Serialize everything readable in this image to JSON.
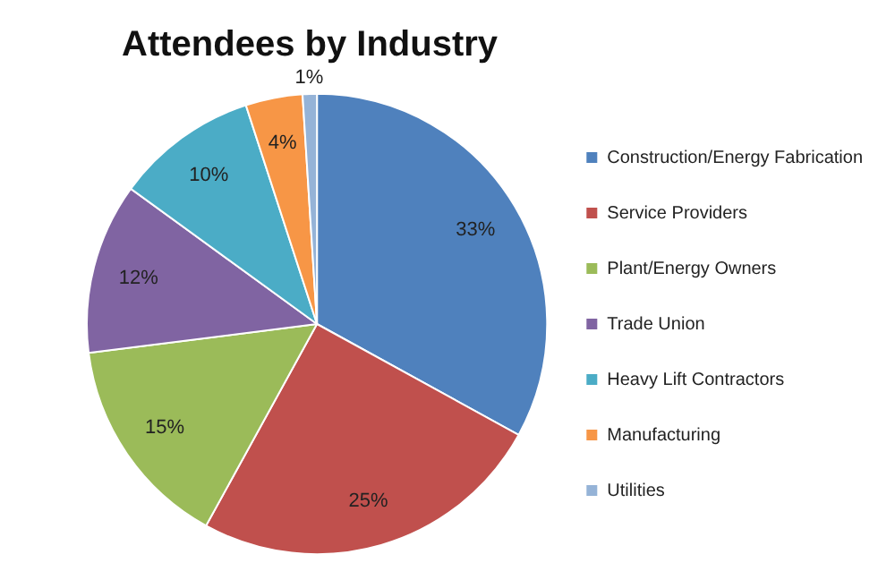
{
  "chart_data": {
    "type": "pie",
    "title": "Attendees by Industry",
    "categories": [
      "Construction/Energy Fabrication",
      "Service Providers",
      "Plant/Energy Owners",
      "Trade Union",
      "Heavy Lift Contractors",
      "Manufacturing",
      "Utilities"
    ],
    "values": [
      33,
      25,
      15,
      12,
      10,
      4,
      1
    ],
    "colors": [
      "#4f81bd",
      "#c0504d",
      "#9bbb59",
      "#8064a2",
      "#4bacc6",
      "#f79646",
      "#95b3d7"
    ],
    "value_labels": [
      "33%",
      "25%",
      "15%",
      "12%",
      "10%",
      "4%",
      "1%"
    ],
    "legend": "right"
  }
}
